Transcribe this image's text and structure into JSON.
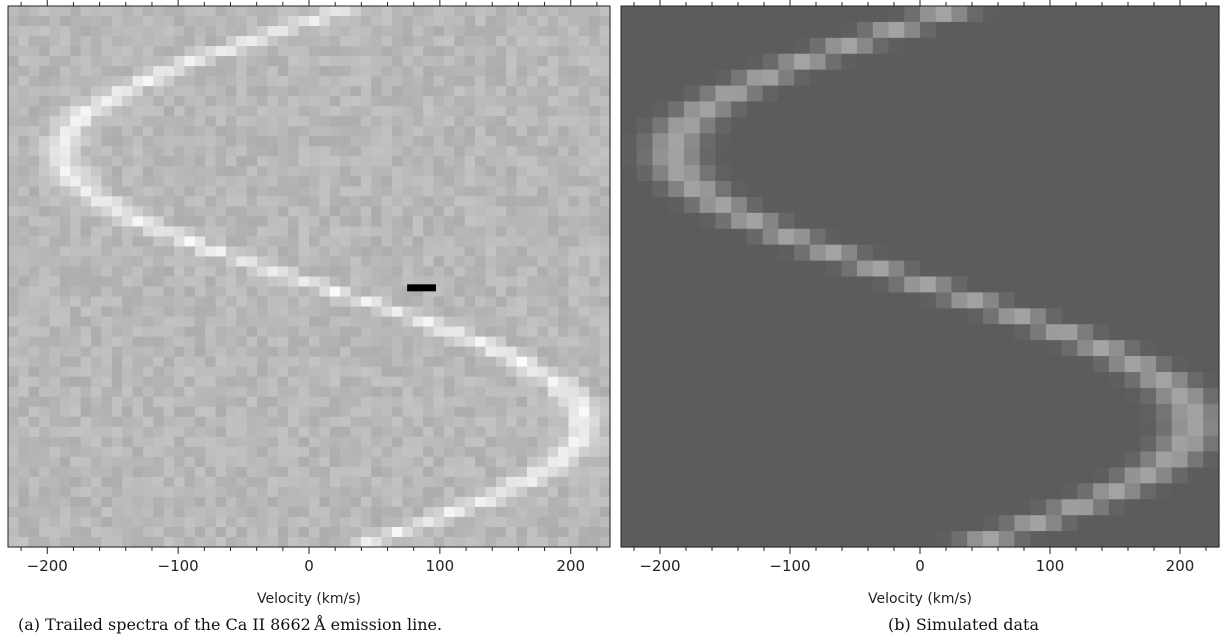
{
  "chart_data": [
    {
      "type": "heatmap",
      "panel": "a",
      "caption": "(a) Trailed spectra of the Ca II 8662 Å  emission line.",
      "xlabel": "Velocity (km/s)",
      "ylabel": "",
      "xlim": [
        -230,
        230
      ],
      "x_ticks": [
        -200,
        -100,
        0,
        100,
        200
      ],
      "x_tick_labels": [
        "−200",
        "−100",
        "0",
        "100",
        "200"
      ],
      "pixel_grid": {
        "velocity_bins": 58,
        "rows": 54
      },
      "background_level": 0.72,
      "noise": 0.045,
      "line_peak": 0.22,
      "line_width_kms": 10,
      "s_wave": {
        "gamma_kms": 10,
        "K_kms": 200,
        "phase_min_row_frac": 0.27,
        "rows_per_cycle_frac": 1.0
      },
      "artifact": {
        "velocity_kms": [
          75,
          97
        ],
        "row_frac": 0.52,
        "color": "#000000"
      }
    },
    {
      "type": "heatmap",
      "panel": "b",
      "caption": "(b) Simulated data",
      "xlabel": "Velocity (km/s)",
      "ylabel": "",
      "xlim": [
        -230,
        230
      ],
      "x_ticks": [
        -200,
        -100,
        0,
        100,
        200
      ],
      "x_tick_labels": [
        "−200",
        "−100",
        "0",
        "100",
        "200"
      ],
      "pixel_grid": {
        "velocity_bins": 38,
        "rows": 34
      },
      "background_level": 0.36,
      "noise": 0.0,
      "line_peak": 0.28,
      "line_width_kms": 14,
      "s_wave": {
        "gamma_kms": 10,
        "K_kms": 200,
        "phase_min_row_frac": 0.27,
        "rows_per_cycle_frac": 1.0
      }
    }
  ]
}
